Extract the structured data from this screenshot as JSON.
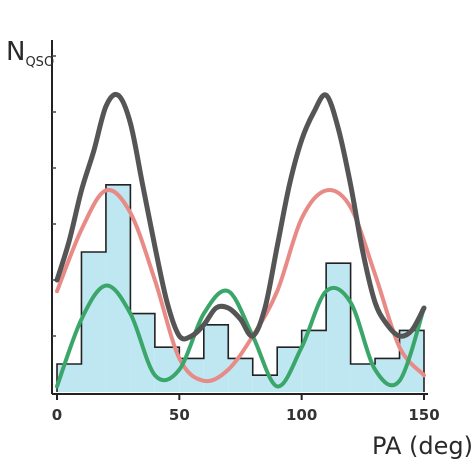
{
  "chart_data": {
    "type": "line",
    "ylabel_main": "N",
    "ylabel_sub": "QSO",
    "xlabel": "PA (deg)",
    "xlim": [
      0,
      150
    ],
    "x_ticks": [
      0,
      50,
      100,
      150
    ],
    "grid": false,
    "legend": "none",
    "y_ticks_count": 6,
    "histogram": {
      "bin_edges": [
        0,
        10,
        20,
        30,
        40,
        50,
        60,
        70,
        80,
        90,
        100,
        110,
        120,
        130,
        140,
        150
      ],
      "values": [
        0.5,
        2.5,
        3.7,
        1.4,
        0.8,
        0.6,
        1.2,
        0.6,
        0.3,
        0.8,
        1.1,
        2.3,
        0.5,
        0.6,
        1.1
      ],
      "fill_color": "#bfe7f2",
      "line_color": "#222222"
    },
    "series": [
      {
        "color": "#555555",
        "x": [
          0,
          5,
          10,
          15,
          20,
          25,
          30,
          35,
          40,
          45,
          50,
          55,
          60,
          65,
          70,
          75,
          80,
          85,
          90,
          95,
          100,
          105,
          110,
          115,
          120,
          125,
          130,
          135,
          140,
          145,
          150
        ],
        "values": [
          2.0,
          2.7,
          3.6,
          4.3,
          5.1,
          5.3,
          4.8,
          3.7,
          2.6,
          1.6,
          1.0,
          1.0,
          1.2,
          1.5,
          1.5,
          1.3,
          1.0,
          1.5,
          2.6,
          3.7,
          4.5,
          5.0,
          5.3,
          4.7,
          3.7,
          2.5,
          1.6,
          1.2,
          1.0,
          1.1,
          1.5
        ]
      },
      {
        "color": "#e88a85",
        "x": [
          0,
          10,
          20,
          30,
          40,
          50,
          60,
          70,
          80,
          90,
          100,
          110,
          120,
          130,
          140,
          150
        ],
        "values": [
          1.8,
          2.9,
          3.6,
          3.2,
          2.0,
          0.6,
          0.2,
          0.4,
          1.0,
          1.8,
          3.1,
          3.6,
          3.3,
          2.1,
          0.8,
          0.3
        ]
      },
      {
        "color": "#3aa66a",
        "x": [
          0,
          10,
          20,
          30,
          40,
          50,
          60,
          70,
          80,
          90,
          100,
          110,
          120,
          130,
          140,
          150
        ],
        "values": [
          0.1,
          1.3,
          1.9,
          1.4,
          0.3,
          0.4,
          1.4,
          1.8,
          1.0,
          0.1,
          0.8,
          1.8,
          1.6,
          0.4,
          0.2,
          1.5
        ]
      }
    ]
  }
}
